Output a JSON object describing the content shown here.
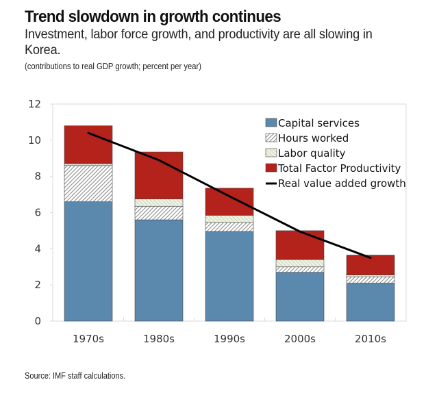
{
  "header": {
    "title": "Trend slowdown in growth continues",
    "subtitle": "Investment, labor force growth, and productivity are all slowing in Korea.",
    "note": "(contributions to real GDP growth; percent per year)"
  },
  "footer": {
    "source": "Source: IMF staff calculations."
  },
  "colors": {
    "capital": "#5b88ad",
    "tfp": "#b3231b",
    "hours_bg": "#ffffff",
    "hours_line": "#8c8c8c",
    "labor_bg": "#eef3e4",
    "labor_line": "#b8c7a8",
    "line": "#000000",
    "frame": "#d9d9d9",
    "bar_outline": "#444444"
  },
  "chart_data": {
    "type": "bar",
    "stacked": true,
    "title": "Trend slowdown in growth continues",
    "subtitle": "Investment, labor force growth, and productivity are all slowing in Korea.",
    "xlabel": "",
    "ylabel": "contributions to real GDP growth; percent per year",
    "categories": [
      "1970s",
      "1980s",
      "1990s",
      "2000s",
      "2010s"
    ],
    "ylim": [
      0,
      12
    ],
    "yticks": [
      0,
      2,
      4,
      6,
      8,
      10,
      12
    ],
    "grid": false,
    "legend_position": "top-right",
    "series": [
      {
        "name": "Capital services",
        "type": "bar",
        "key": "capital",
        "values": [
          6.6,
          5.6,
          4.95,
          2.7,
          2.1
        ]
      },
      {
        "name": "Hours worked",
        "type": "bar",
        "key": "hours",
        "values": [
          2.0,
          0.75,
          0.5,
          0.3,
          0.35
        ]
      },
      {
        "name": "Labor quality",
        "type": "bar",
        "key": "labor",
        "values": [
          0.1,
          0.4,
          0.4,
          0.4,
          0.1
        ]
      },
      {
        "name": "Total Factor Productivity",
        "type": "bar",
        "key": "tfp",
        "values": [
          2.1,
          2.6,
          1.5,
          1.6,
          1.1
        ]
      },
      {
        "name": "Real value added growth",
        "type": "line",
        "key": "line",
        "values": [
          10.4,
          8.9,
          6.9,
          4.95,
          3.5
        ]
      }
    ]
  }
}
